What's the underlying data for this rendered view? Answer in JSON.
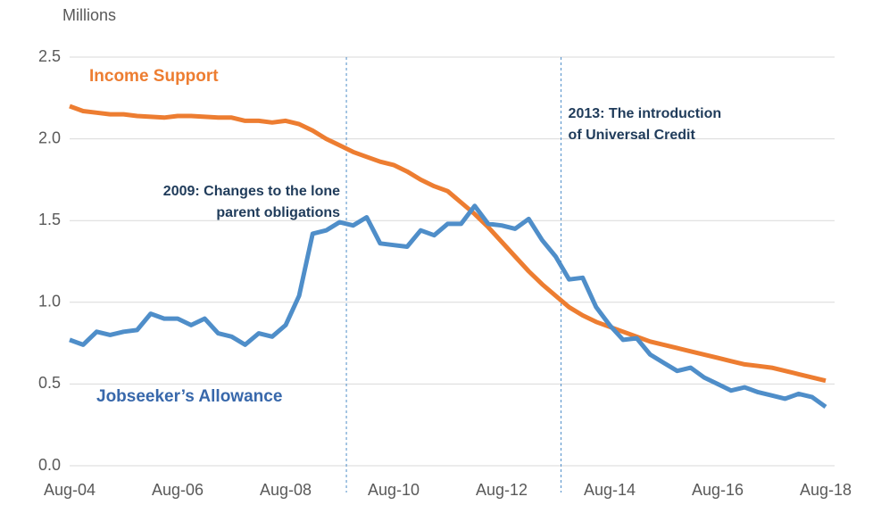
{
  "chart_data": {
    "type": "line",
    "y_axis_label": "Millions",
    "categories": [
      "Aug-04",
      null,
      null,
      null,
      null,
      null,
      null,
      null,
      "Aug-06",
      null,
      null,
      null,
      null,
      null,
      null,
      null,
      "Aug-08",
      null,
      null,
      null,
      null,
      null,
      null,
      null,
      "Aug-10",
      null,
      null,
      null,
      null,
      null,
      null,
      null,
      "Aug-12",
      null,
      null,
      null,
      null,
      null,
      null,
      null,
      "Aug-14",
      null,
      null,
      null,
      null,
      null,
      null,
      null,
      "Aug-16",
      null,
      null,
      null,
      null,
      null,
      null,
      null,
      "Aug-18"
    ],
    "series": [
      {
        "name": "Income Support",
        "color": "#ed7d31",
        "label_color": "#ed7d31",
        "values": [
          2.2,
          2.17,
          2.16,
          2.15,
          2.15,
          2.14,
          2.135,
          2.13,
          2.14,
          2.14,
          2.135,
          2.13,
          2.13,
          2.11,
          2.11,
          2.1,
          2.11,
          2.09,
          2.05,
          2.0,
          1.96,
          1.92,
          1.89,
          1.86,
          1.84,
          1.8,
          1.75,
          1.71,
          1.68,
          1.61,
          1.54,
          1.46,
          1.37,
          1.28,
          1.19,
          1.11,
          1.04,
          0.97,
          0.92,
          0.88,
          0.85,
          0.82,
          0.79,
          0.76,
          0.74,
          0.72,
          0.7,
          0.68,
          0.66,
          0.64,
          0.62,
          0.61,
          0.6,
          0.58,
          0.56,
          0.54,
          0.52
        ]
      },
      {
        "name": "Jobseeker’s Allowance",
        "color": "#4f8ec9",
        "label_color": "#3868ab",
        "values": [
          0.77,
          0.74,
          0.82,
          0.8,
          0.82,
          0.83,
          0.93,
          0.9,
          0.9,
          0.86,
          0.9,
          0.81,
          0.79,
          0.74,
          0.81,
          0.79,
          0.86,
          1.04,
          1.42,
          1.44,
          1.49,
          1.47,
          1.52,
          1.36,
          1.35,
          1.34,
          1.44,
          1.41,
          1.48,
          1.48,
          1.59,
          1.48,
          1.47,
          1.45,
          1.51,
          1.38,
          1.28,
          1.14,
          1.15,
          0.97,
          0.86,
          0.77,
          0.78,
          0.68,
          0.63,
          0.58,
          0.6,
          0.54,
          0.5,
          0.46,
          0.48,
          0.45,
          0.43,
          0.41,
          0.44,
          0.42,
          0.36
        ]
      }
    ],
    "annotations": [
      {
        "text": [
          "2009: Changes to the lone",
          "parent obligations"
        ],
        "x": 20.5
      },
      {
        "text": [
          "2013: The introduction",
          "of Universal Credit"
        ],
        "x": 36.4
      }
    ],
    "ylim": [
      0,
      2.5
    ],
    "yticks": [
      {
        "value": 0,
        "label": "0.0"
      },
      0.5,
      {
        "value": 1,
        "label": "1.0"
      },
      1.5,
      {
        "value": 2,
        "label": "2.0"
      },
      2.5
    ],
    "grid": true
  }
}
